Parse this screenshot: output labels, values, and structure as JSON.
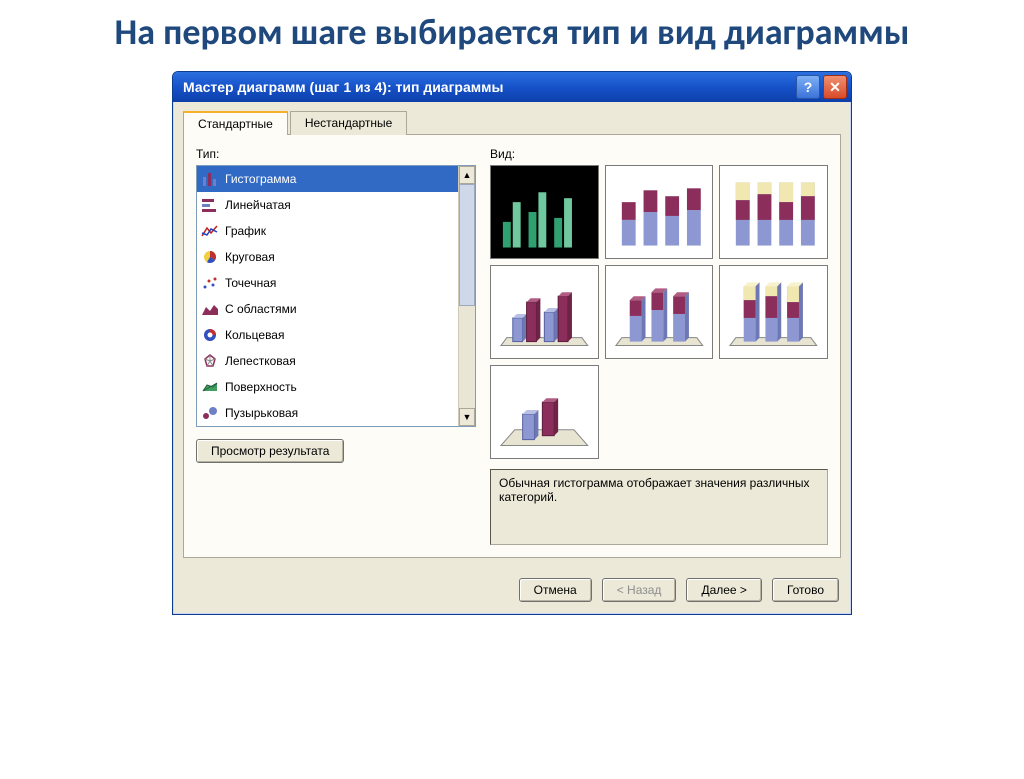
{
  "slide": {
    "title": "На первом шаге выбирается тип и вид диаграммы"
  },
  "dialog": {
    "title": "Мастер диаграмм (шаг 1 из 4): тип диаграммы",
    "help_glyph": "?",
    "close_glyph": "✕",
    "tabs": {
      "standard": "Стандартные",
      "custom": "Нестандартные"
    },
    "type_label": "Тип:",
    "subtype_label": "Вид:",
    "chart_types": [
      {
        "label": "Гистограмма",
        "selected": true
      },
      {
        "label": "Линейчатая",
        "selected": false
      },
      {
        "label": "График",
        "selected": false
      },
      {
        "label": "Круговая",
        "selected": false
      },
      {
        "label": "Точечная",
        "selected": false
      },
      {
        "label": "С областями",
        "selected": false
      },
      {
        "label": "Кольцевая",
        "selected": false
      },
      {
        "label": "Лепестковая",
        "selected": false
      },
      {
        "label": "Поверхность",
        "selected": false
      },
      {
        "label": "Пузырьковая",
        "selected": false
      }
    ],
    "description": "Обычная гистограмма отображает значения различных категорий.",
    "preview_button": "Просмотр результата",
    "buttons": {
      "cancel": "Отмена",
      "back": "< Назад",
      "next": "Далее >",
      "finish": "Готово"
    }
  },
  "colors": {
    "titlebar_top": "#2b6fe0",
    "titlebar_bottom": "#0d3fa9",
    "selection": "#316ac5",
    "panel_bg": "#ece9d8",
    "border": "#aca899",
    "slide_title": "#1f497d",
    "accent_a": "#8b2e5b",
    "accent_b": "#8d97d1",
    "accent_c": "#f0e8b0",
    "thumb_green1": "#2fa070",
    "thumb_green2": "#6fc89e",
    "thumb_blue": "#6e7fc8"
  },
  "thumbnails": {
    "bars": [
      28,
      50,
      44,
      60,
      36,
      56
    ],
    "stacked_colors": [
      "#8b2e5b",
      "#8d97d1"
    ],
    "stacked3_colors": [
      "#f0e8b0",
      "#8b2e5b",
      "#8d97d1"
    ],
    "selected_colors": [
      "#2fa070",
      "#6fc89e",
      "#2fa070",
      "#6fc89e",
      "#2fa070",
      "#6fc89e"
    ]
  }
}
